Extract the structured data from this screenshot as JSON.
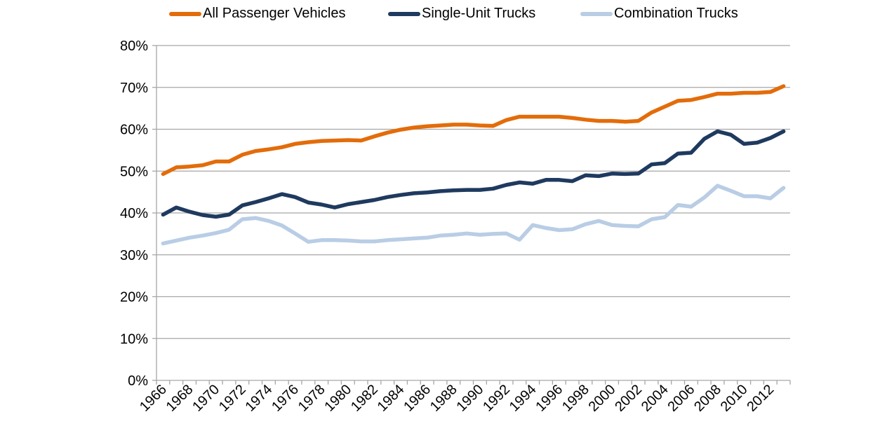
{
  "chart_data": {
    "type": "line",
    "title": "",
    "xlabel": "",
    "ylabel": "",
    "ylim": [
      0,
      80
    ],
    "y_ticks": [
      "0%",
      "10%",
      "20%",
      "30%",
      "40%",
      "50%",
      "60%",
      "70%",
      "80%"
    ],
    "y_tick_values": [
      0,
      10,
      20,
      30,
      40,
      50,
      60,
      70,
      80
    ],
    "grid": true,
    "legend_position": "top",
    "x": [
      1966,
      1967,
      1968,
      1969,
      1970,
      1971,
      1972,
      1973,
      1974,
      1975,
      1976,
      1977,
      1978,
      1979,
      1980,
      1981,
      1982,
      1983,
      1984,
      1985,
      1986,
      1987,
      1988,
      1989,
      1990,
      1991,
      1992,
      1993,
      1994,
      1995,
      1996,
      1997,
      1998,
      1999,
      2000,
      2001,
      2002,
      2003,
      2004,
      2005,
      2006,
      2007,
      2008,
      2009,
      2010,
      2011,
      2012,
      2013
    ],
    "x_tick_labels": [
      "1966",
      "1968",
      "1970",
      "1972",
      "1974",
      "1976",
      "1978",
      "1980",
      "1982",
      "1984",
      "1986",
      "1988",
      "1990",
      "1992",
      "1994",
      "1996",
      "1998",
      "2000",
      "2002",
      "2004",
      "2006",
      "2008",
      "2010",
      "2012"
    ],
    "series": [
      {
        "name": "All Passenger Vehicles",
        "color": "#E36C0A",
        "values": [
          49.3,
          50.9,
          51.1,
          51.4,
          52.3,
          52.3,
          53.9,
          54.8,
          55.2,
          55.7,
          56.5,
          56.9,
          57.2,
          57.3,
          57.4,
          57.3,
          58.3,
          59.2,
          59.9,
          60.4,
          60.7,
          60.9,
          61.1,
          61.1,
          60.9,
          60.8,
          62.2,
          63.0,
          63.0,
          63.0,
          63.0,
          62.7,
          62.3,
          62.0,
          62.0,
          61.8,
          62.0,
          64.0,
          65.4,
          66.8,
          67.0,
          67.7,
          68.5,
          68.5,
          68.7,
          68.7,
          68.9,
          70.3
        ]
      },
      {
        "name": "Single-Unit Trucks",
        "color": "#1F3A5F",
        "values": [
          39.6,
          41.3,
          40.3,
          39.5,
          39.1,
          39.6,
          41.8,
          42.6,
          43.5,
          44.5,
          43.8,
          42.5,
          42.0,
          41.3,
          42.1,
          42.6,
          43.1,
          43.8,
          44.3,
          44.7,
          44.9,
          45.2,
          45.4,
          45.5,
          45.5,
          45.8,
          46.7,
          47.3,
          47.0,
          47.9,
          47.9,
          47.6,
          49.0,
          48.8,
          49.4,
          49.3,
          49.4,
          51.6,
          51.9,
          54.2,
          54.4,
          57.7,
          59.5,
          58.7,
          56.5,
          56.8,
          57.9,
          59.5
        ]
      },
      {
        "name": "Combination Trucks",
        "color": "#B9CDE5",
        "values": [
          32.7,
          33.4,
          34.1,
          34.6,
          35.2,
          36.0,
          38.5,
          38.8,
          38.1,
          37.0,
          35.1,
          33.1,
          33.5,
          33.5,
          33.4,
          33.2,
          33.2,
          33.5,
          33.7,
          33.9,
          34.1,
          34.6,
          34.8,
          35.1,
          34.8,
          35.0,
          35.1,
          33.6,
          37.1,
          36.4,
          35.9,
          36.1,
          37.3,
          38.1,
          37.1,
          36.9,
          36.8,
          38.5,
          39.0,
          41.9,
          41.5,
          43.7,
          46.5,
          45.3,
          44.0,
          44.0,
          43.5,
          46.0
        ]
      }
    ]
  }
}
